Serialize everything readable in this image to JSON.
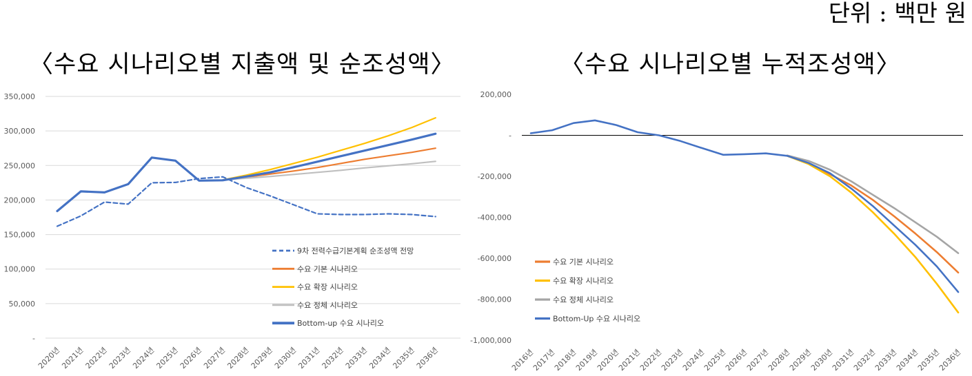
{
  "page": {
    "unit_label": "단위 : 백만 원",
    "colors": {
      "plan": "#4472C4",
      "base": "#ED7D31",
      "expand": "#FFC000",
      "stagnant": "#BFBFBF",
      "stagnant_right": "#A5A5A5",
      "bottomup": "#4472C4"
    }
  },
  "chart_data": [
    {
      "type": "line",
      "title": "〈수요 시나리오별 지출액 및 순조성액〉",
      "xlabel": "",
      "ylabel": "",
      "ylim": [
        0,
        350000
      ],
      "yticks": [
        0,
        50000,
        100000,
        150000,
        200000,
        250000,
        300000,
        350000
      ],
      "ytick_labels": [
        "-",
        "50,000",
        "100,000",
        "150,000",
        "200,000",
        "250,000",
        "300,000",
        "350,000"
      ],
      "categories": [
        "2020년",
        "2021년",
        "2022년",
        "2023년",
        "2024년",
        "2025년",
        "2026년",
        "2027년",
        "2028년",
        "2029년",
        "2030년",
        "2031년",
        "2032년",
        "2033년",
        "2034년",
        "2035년",
        "2036년"
      ],
      "grid": true,
      "legend_position": "bottom-right",
      "series": [
        {
          "name": "9차 전력수급기본계획 순조성액 전망",
          "key": "plan",
          "dash": true,
          "values": [
            162000,
            177000,
            197000,
            194000,
            225000,
            225500,
            231000,
            233500,
            218000,
            206000,
            193000,
            180000,
            179000,
            179000,
            180000,
            179000,
            176000
          ]
        },
        {
          "name": "수요 기본 시나리오",
          "key": "base",
          "values": [
            null,
            null,
            null,
            null,
            null,
            null,
            null,
            229000,
            233000,
            237500,
            242000,
            247000,
            253000,
            259000,
            264000,
            269000,
            275000
          ]
        },
        {
          "name": "수요 확장 시나리오",
          "key": "expand",
          "values": [
            null,
            null,
            null,
            null,
            null,
            null,
            null,
            229000,
            236000,
            244000,
            253000,
            262000,
            272000,
            282000,
            293000,
            305000,
            319000
          ]
        },
        {
          "name": "수요 정체 시나리오",
          "key": "stagnant",
          "values": [
            null,
            null,
            null,
            null,
            null,
            null,
            null,
            229000,
            231500,
            234000,
            237000,
            240000,
            243000,
            246500,
            249500,
            252500,
            256000
          ]
        },
        {
          "name": "Bottom-up 수요 시나리오",
          "key": "bottomup",
          "values": [
            184000,
            212500,
            211000,
            223000,
            261500,
            257000,
            228000,
            228500,
            234000,
            240000,
            247500,
            255500,
            263500,
            271500,
            279500,
            287500,
            296000
          ]
        }
      ]
    },
    {
      "type": "line",
      "title": "〈수요 시나리오별 누적조성액〉",
      "xlabel": "",
      "ylabel": "",
      "ylim": [
        -1000000,
        200000
      ],
      "yticks": [
        -1000000,
        -800000,
        -600000,
        -400000,
        -200000,
        0,
        200000
      ],
      "ytick_labels": [
        "-1,000,000",
        "-800,000",
        "-600,000",
        "-400,000",
        "-200,000",
        "-",
        "200,000"
      ],
      "categories": [
        "2016년",
        "2017년",
        "2018년",
        "2019년",
        "2020년",
        "2021년",
        "2022년",
        "2023년",
        "2024년",
        "2025년",
        "2026년",
        "2027년",
        "2028년",
        "2029년",
        "2030년",
        "2031년",
        "2032년",
        "2033년",
        "2034년",
        "2035년",
        "2036년"
      ],
      "grid": false,
      "legend_position": "bottom-left",
      "series": [
        {
          "name": "수요 기본 시나리오",
          "key": "base",
          "values": [
            null,
            null,
            null,
            null,
            null,
            null,
            null,
            null,
            null,
            null,
            null,
            null,
            -100000,
            -135000,
            -190000,
            -245000,
            -315000,
            -395000,
            -480000,
            -570000,
            -670000
          ]
        },
        {
          "name": "수요 확장 시나리오",
          "key": "expand",
          "values": [
            null,
            null,
            null,
            null,
            null,
            null,
            null,
            null,
            null,
            null,
            null,
            null,
            -100000,
            -140000,
            -200000,
            -280000,
            -375000,
            -480000,
            -595000,
            -725000,
            -865000
          ]
        },
        {
          "name": "수요 정체 시나리오",
          "key": "stagnant_right",
          "values": [
            null,
            null,
            null,
            null,
            null,
            null,
            null,
            null,
            null,
            null,
            null,
            null,
            -98000,
            -125000,
            -168000,
            -225000,
            -290000,
            -355000,
            -425000,
            -495000,
            -575000
          ]
        },
        {
          "name": "Bottom-Up 수요 시나리오",
          "key": "bottomup",
          "values": [
            10000,
            25000,
            60000,
            73000,
            50000,
            15000,
            0,
            -28000,
            -62000,
            -95000,
            -92000,
            -88000,
            -100000,
            -135000,
            -185000,
            -260000,
            -345000,
            -440000,
            -535000,
            -640000,
            -765000
          ]
        }
      ]
    }
  ]
}
